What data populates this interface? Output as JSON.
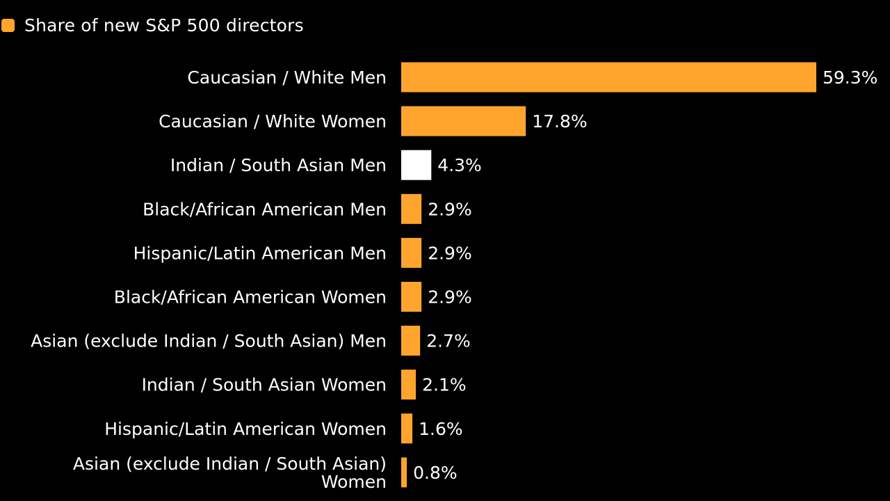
{
  "legend": {
    "label": "Share of new S&P 500 directors",
    "swatch_color": "#ffa52e"
  },
  "colors": {
    "default_bar": "#ffa52e",
    "highlight_bar": "#ffffff",
    "background": "#000000",
    "text": "#ffffff"
  },
  "chart_data": {
    "type": "bar",
    "orientation": "horizontal",
    "title": "",
    "xlabel": "",
    "ylabel": "",
    "xlim": [
      0,
      60
    ],
    "grid": false,
    "legend_placement": "top-left",
    "value_suffix": "%",
    "categories": [
      "Caucasian / White Men",
      "Caucasian / White Women",
      "Indian / South Asian Men",
      "Black/African American Men",
      "Hispanic/Latin American Men",
      "Black/African American Women",
      "Asian (exclude Indian / South Asian) Men",
      "Indian / South Asian Women",
      "Hispanic/Latin American Women",
      "Asian (exclude Indian / South Asian) Women"
    ],
    "category_lines": [
      [
        "Caucasian / White Men"
      ],
      [
        "Caucasian / White Women"
      ],
      [
        "Indian / South Asian Men"
      ],
      [
        "Black/African American Men"
      ],
      [
        "Hispanic/Latin American Men"
      ],
      [
        "Black/African American Women"
      ],
      [
        "Asian (exclude Indian / South Asian) Men"
      ],
      [
        "Indian / South Asian Women"
      ],
      [
        "Hispanic/Latin American Women"
      ],
      [
        "Asian (exclude Indian / South Asian)",
        "Women"
      ]
    ],
    "series": [
      {
        "name": "Share of new S&P 500 directors",
        "values": [
          59.3,
          17.8,
          4.3,
          2.9,
          2.9,
          2.9,
          2.7,
          2.1,
          1.6,
          0.8
        ],
        "labels": [
          "59.3%",
          "17.8%",
          "4.3%",
          "2.9%",
          "2.9%",
          "2.9%",
          "2.7%",
          "2.1%",
          "1.6%",
          "0.8%"
        ]
      }
    ],
    "highlight_index": 2
  }
}
